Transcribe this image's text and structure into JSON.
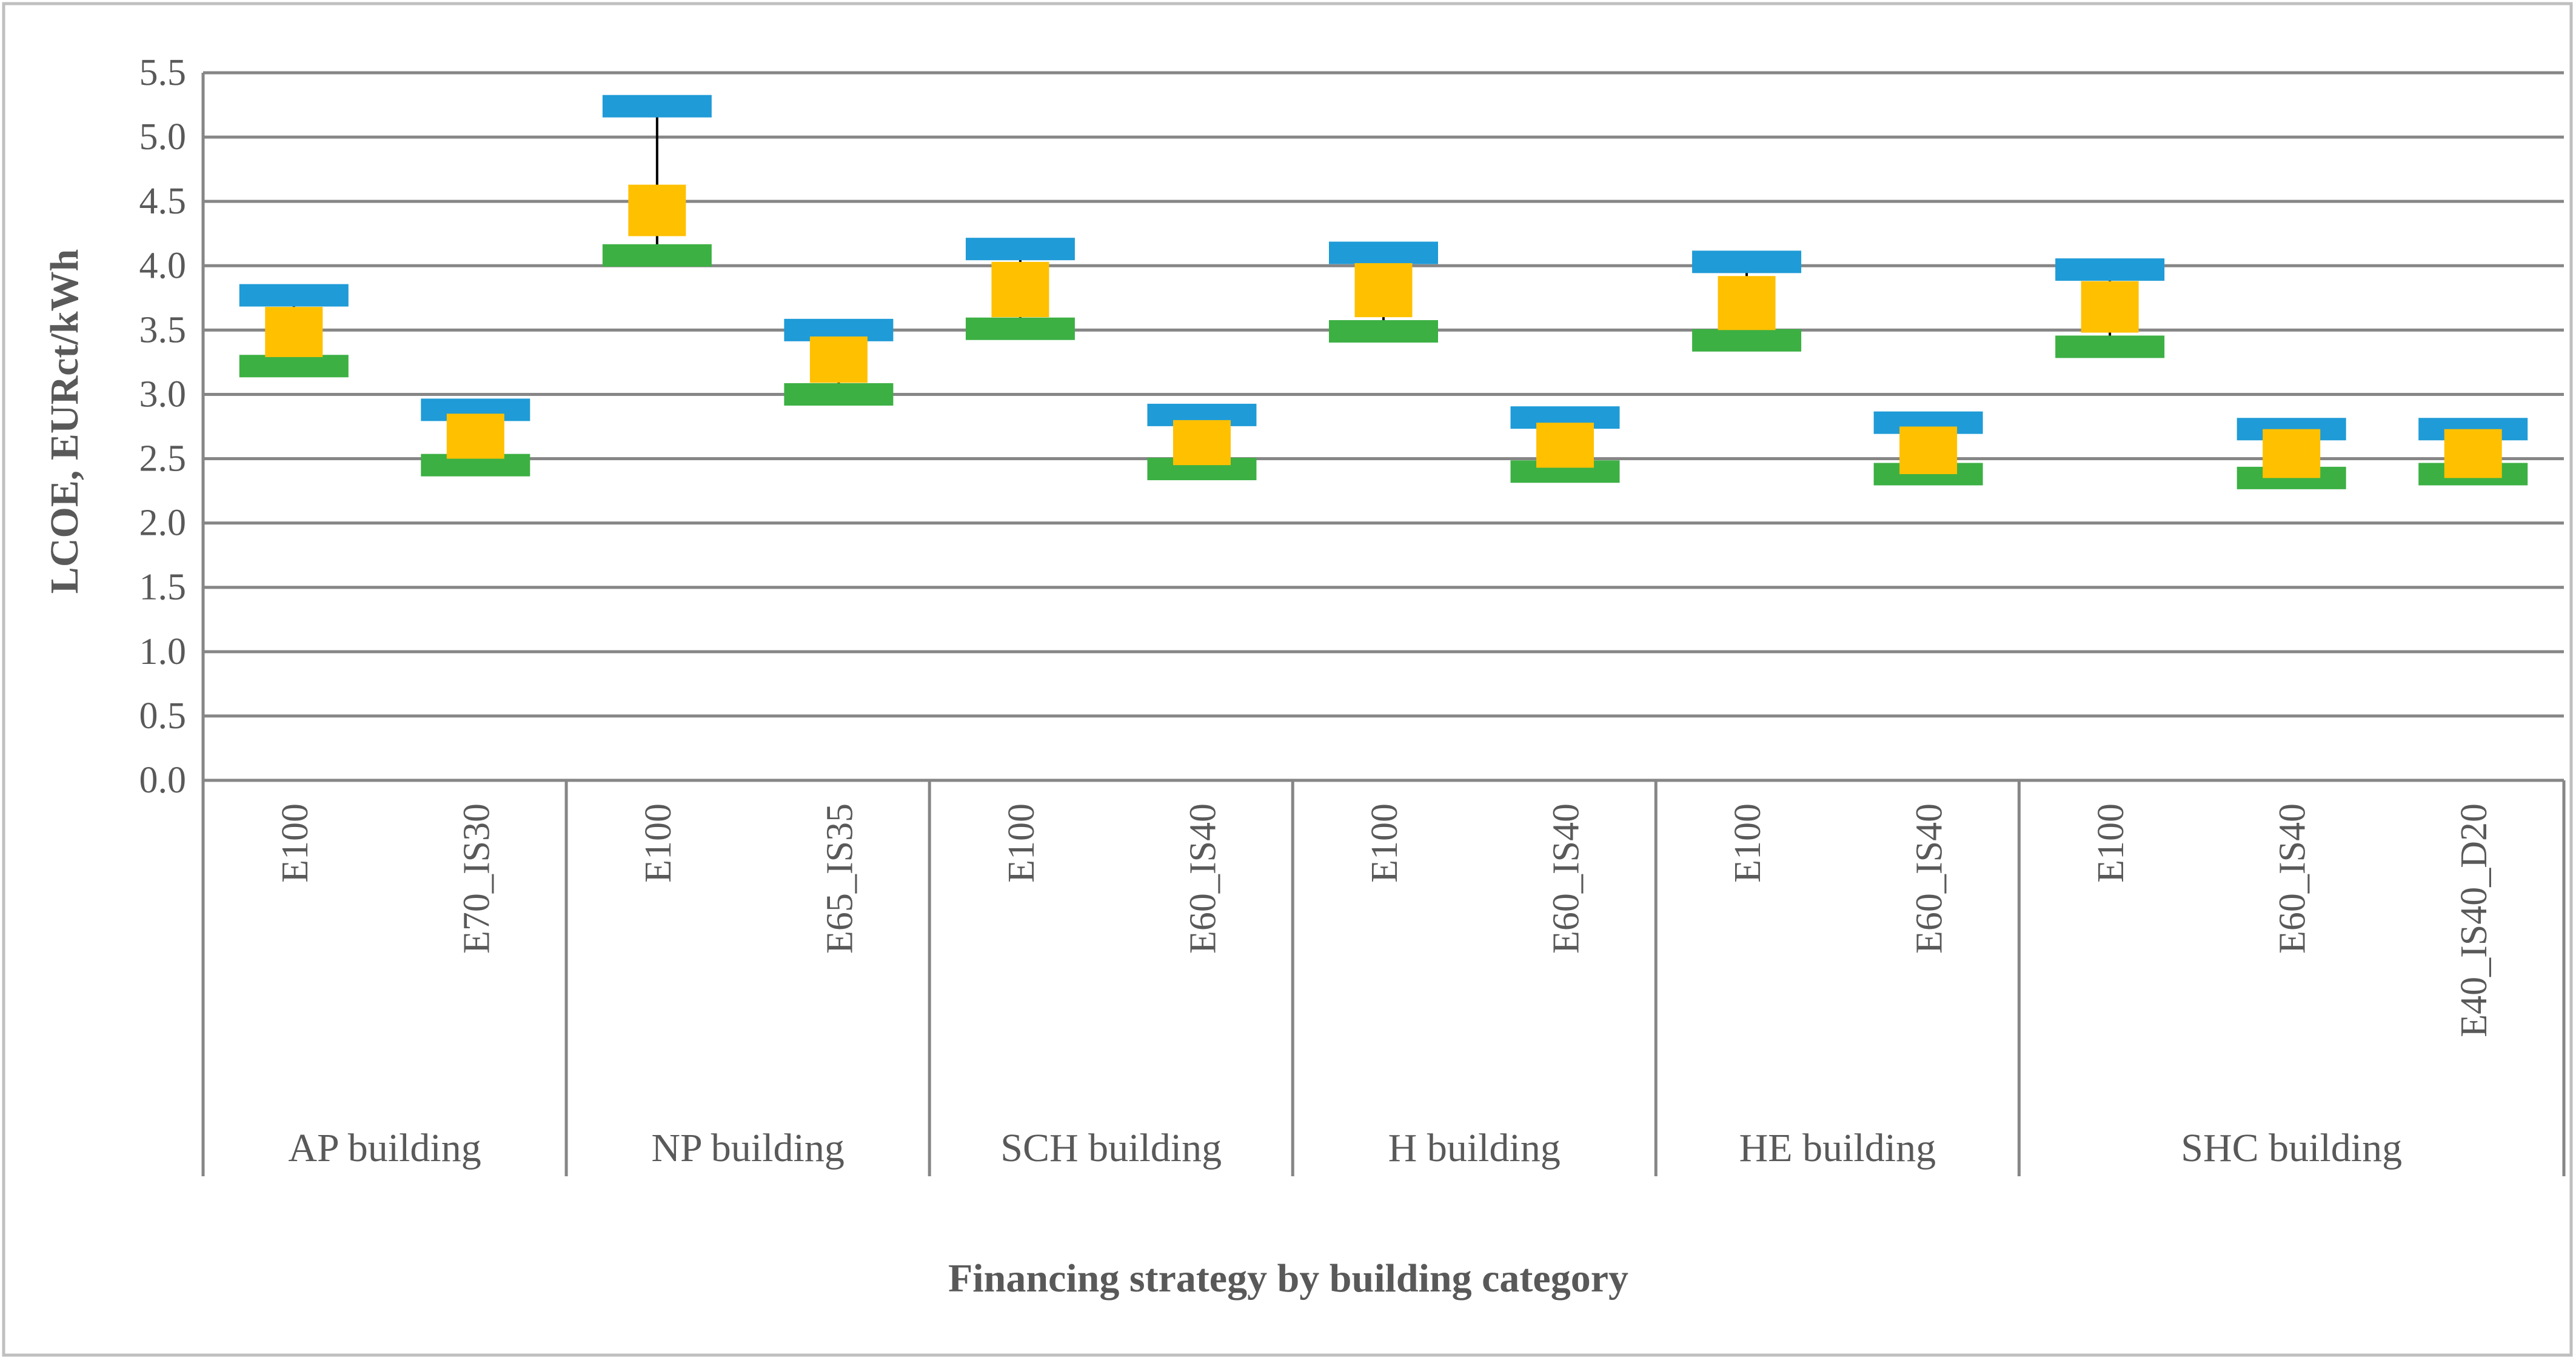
{
  "chart_data": {
    "type": "candlestick",
    "title": "",
    "xlabel": "Financing strategy by building category",
    "ylabel": "LCOE, EURct/kWh",
    "ylim": [
      0,
      5.5
    ],
    "ytick_step": 0.5,
    "ytick_labels": [
      "0.0",
      "0.5",
      "1.0",
      "1.5",
      "2.0",
      "2.5",
      "3.0",
      "3.5",
      "4.0",
      "4.5",
      "5.0",
      "5.5"
    ],
    "grid": true,
    "legend": "none",
    "colors": {
      "high": "#1f9bd7",
      "mid": "#ffc000",
      "low": "#3cb043",
      "whisker": "#000000"
    },
    "groups": [
      {
        "name": "AP building",
        "categories": [
          {
            "label": "E100",
            "high": 3.77,
            "open": 3.68,
            "close": 3.29,
            "low": 3.22
          },
          {
            "label": "E70_IS30",
            "high": 2.88,
            "open": 2.85,
            "close": 2.5,
            "low": 2.45
          }
        ]
      },
      {
        "name": "NP building",
        "categories": [
          {
            "label": "E100",
            "high": 5.24,
            "open": 4.63,
            "close": 4.23,
            "low": 4.08
          },
          {
            "label": "E65_IS35",
            "high": 3.5,
            "open": 3.45,
            "close": 3.09,
            "low": 3.0
          }
        ]
      },
      {
        "name": "SCH building",
        "categories": [
          {
            "label": "E100",
            "high": 4.13,
            "open": 4.03,
            "close": 3.6,
            "low": 3.51
          },
          {
            "label": "E60_IS40",
            "high": 2.84,
            "open": 2.8,
            "close": 2.45,
            "low": 2.42
          }
        ]
      },
      {
        "name": "H building",
        "categories": [
          {
            "label": "E100",
            "high": 4.1,
            "open": 4.02,
            "close": 3.6,
            "low": 3.49
          },
          {
            "label": "E60_IS40",
            "high": 2.82,
            "open": 2.78,
            "close": 2.43,
            "low": 2.4
          }
        ]
      },
      {
        "name": "HE building",
        "categories": [
          {
            "label": "E100",
            "high": 4.03,
            "open": 3.92,
            "close": 3.5,
            "low": 3.42
          },
          {
            "label": "E60_IS40",
            "high": 2.78,
            "open": 2.75,
            "close": 2.38,
            "low": 2.38
          }
        ]
      },
      {
        "name": "SHC building",
        "categories": [
          {
            "label": "E100",
            "high": 3.97,
            "open": 3.88,
            "close": 3.48,
            "low": 3.37
          },
          {
            "label": "E60_IS40",
            "high": 2.73,
            "open": 2.73,
            "close": 2.35,
            "low": 2.35
          },
          {
            "label": "E40_IS40_D20",
            "high": 2.73,
            "open": 2.73,
            "close": 2.35,
            "low": 2.38
          }
        ]
      }
    ]
  }
}
